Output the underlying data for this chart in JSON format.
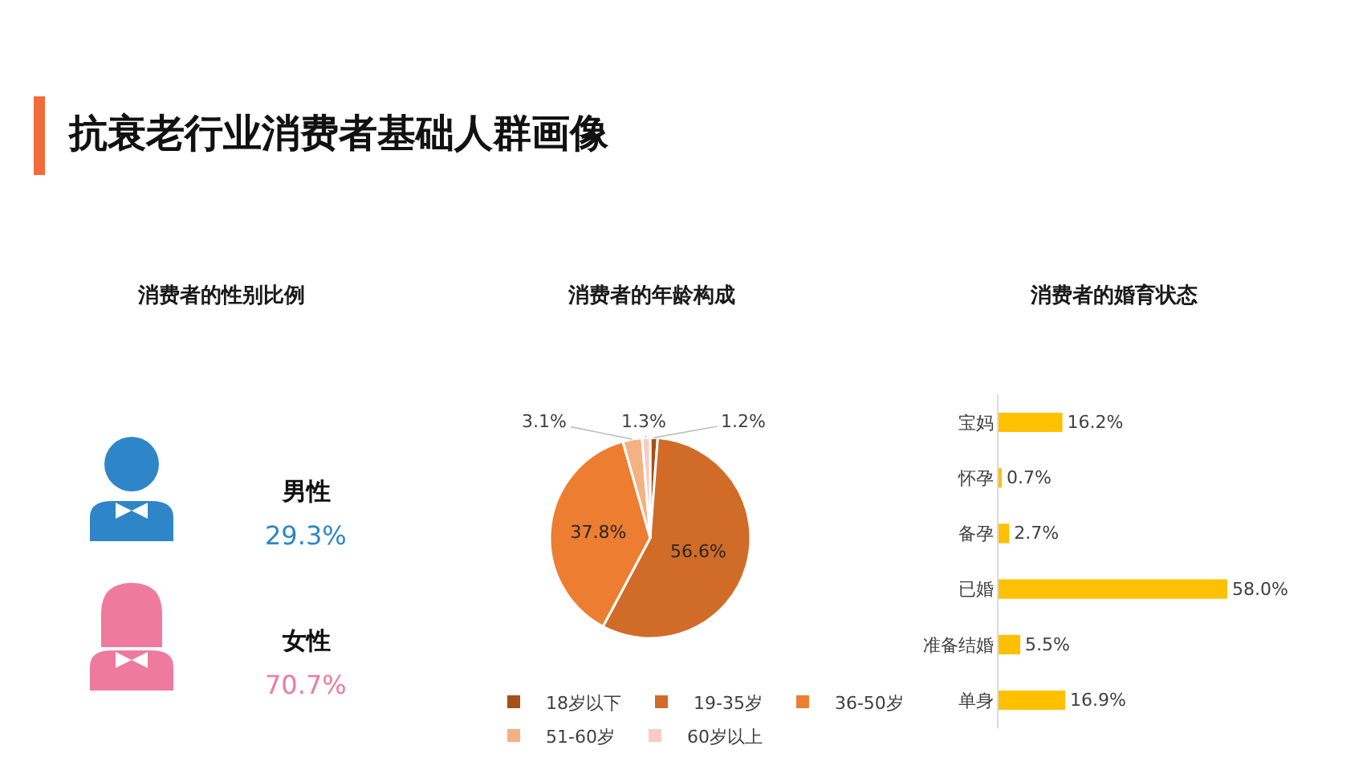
{
  "chart_data": [
    {
      "type": "other",
      "title": "抗衰老行业消费者基础人群画像"
    },
    {
      "type": "other",
      "title": "消费者的性别比例",
      "categories": [
        "男性",
        "女性"
      ],
      "values": [
        29.3,
        70.7
      ],
      "value_labels": [
        "29.3%",
        "70.7%"
      ],
      "colors": [
        "#2e86c8",
        "#ef7a9f"
      ]
    },
    {
      "type": "pie",
      "title": "消费者的年龄构成",
      "categories": [
        "18岁以下",
        "19-35岁",
        "36-50岁",
        "51-60岁",
        "60岁以上"
      ],
      "values": [
        1.2,
        56.6,
        37.8,
        3.1,
        1.3
      ],
      "value_labels": [
        "1.2%",
        "56.6%",
        "37.8%",
        "3.1%",
        "1.3%"
      ],
      "colors": [
        "#a4501a",
        "#d06c28",
        "#ed7d31",
        "#f4b183",
        "#f8cbc4"
      ],
      "legend": "bottom"
    },
    {
      "type": "bar",
      "orientation": "horizontal",
      "title": "消费者的婚育状态",
      "categories": [
        "宝妈",
        "怀孕",
        "备孕",
        "已婚",
        "准备结婚",
        "单身"
      ],
      "values": [
        16.2,
        0.7,
        2.7,
        58.0,
        5.5,
        16.9
      ],
      "value_labels": [
        "16.2%",
        "0.7%",
        "2.7%",
        "58.0%",
        "5.5%",
        "16.9%"
      ],
      "color": "#ffc000",
      "tick_labels": "y"
    }
  ]
}
